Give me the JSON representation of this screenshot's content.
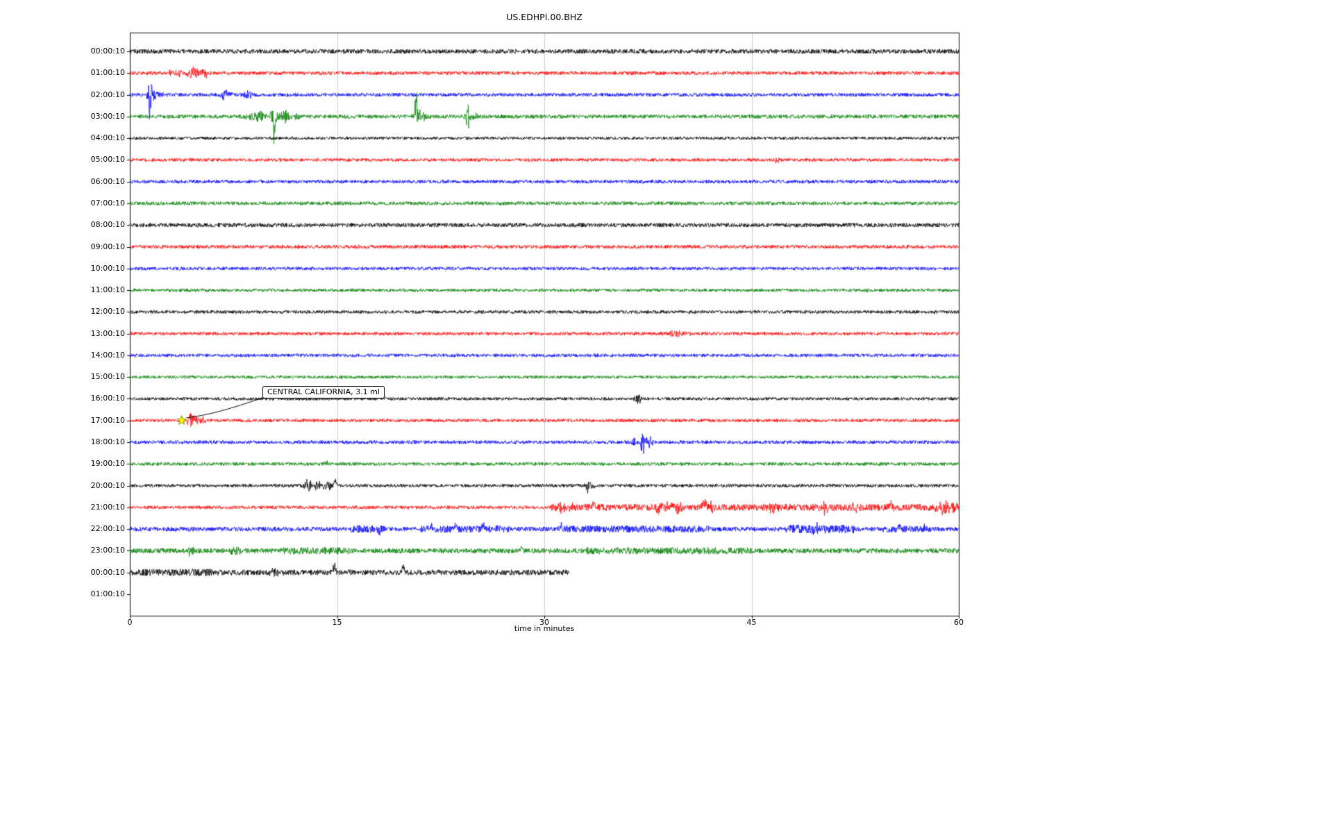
{
  "chart_data": {
    "type": "line",
    "subtype": "seismogram-dayplot",
    "title": "US.EDHPI.00.BHZ",
    "xlabel": "time in minutes",
    "xlim": [
      0,
      60
    ],
    "x_ticks": [
      0,
      15,
      30,
      45,
      60
    ],
    "grid_x": [
      15,
      30,
      45
    ],
    "legend": "none",
    "colors": {
      "black": "#000000",
      "red": "#ff0000",
      "blue": "#0000ff",
      "green": "#008000",
      "grid": "#cccccc",
      "frame": "#000000",
      "marker_fill": "#ffff00",
      "marker_edge": "#8b8b00"
    },
    "annotation": {
      "text": "CENTRAL CALIFORNIA, 3.1 ml",
      "row_label": "17:00:10",
      "row_index": 17,
      "x_minutes": 3.75,
      "marker": "star"
    },
    "rows": [
      {
        "label": "00:00:10",
        "color": "black",
        "amp": 3.2,
        "events": []
      },
      {
        "label": "01:00:10",
        "color": "red",
        "amp": 2.6,
        "events": [
          {
            "x": 2.9,
            "a": 4,
            "w": 0.2
          },
          {
            "x": 3.6,
            "a": 5,
            "w": 0.3
          },
          {
            "x": 4.6,
            "a": 9,
            "w": 0.45
          },
          {
            "x": 5.4,
            "a": 7,
            "w": 0.3
          }
        ]
      },
      {
        "label": "02:00:10",
        "color": "blue",
        "amp": 2.6,
        "events": [
          {
            "x": 1.45,
            "a": 38,
            "w": 0.15
          },
          {
            "x": 1.8,
            "a": 10,
            "w": 0.5
          },
          {
            "x": 6.9,
            "a": 8,
            "w": 0.45
          },
          {
            "x": 8.6,
            "a": 5,
            "w": 0.35
          }
        ]
      },
      {
        "label": "03:00:10",
        "color": "green",
        "amp": 2.8,
        "events": [
          {
            "x": 9.3,
            "a": 7,
            "w": 0.7
          },
          {
            "x": 10.45,
            "a": 12,
            "w": 0.3
          },
          {
            "x": 10.45,
            "a": 55,
            "w": 0.07,
            "dir": 1
          },
          {
            "x": 11.1,
            "a": 8,
            "w": 0.5
          },
          {
            "x": 12.1,
            "a": 5,
            "w": 0.3
          },
          {
            "x": 20.7,
            "a": 26,
            "w": 0.1
          },
          {
            "x": 20.72,
            "a": 55,
            "w": 0.07,
            "dir": -1
          },
          {
            "x": 21.0,
            "a": 8,
            "w": 0.5
          },
          {
            "x": 24.45,
            "a": 20,
            "w": 0.12
          },
          {
            "x": 24.7,
            "a": 6,
            "w": 0.5
          }
        ]
      },
      {
        "label": "04:00:10",
        "color": "black",
        "amp": 2.2,
        "events": []
      },
      {
        "label": "05:00:10",
        "color": "red",
        "amp": 2.4,
        "events": [
          {
            "x": 46.9,
            "a": 4,
            "w": 0.25
          }
        ]
      },
      {
        "label": "06:00:10",
        "color": "blue",
        "amp": 2.6,
        "events": []
      },
      {
        "label": "07:00:10",
        "color": "green",
        "amp": 2.6,
        "events": []
      },
      {
        "label": "08:00:10",
        "color": "black",
        "amp": 3.0,
        "events": []
      },
      {
        "label": "09:00:10",
        "color": "red",
        "amp": 2.6,
        "events": []
      },
      {
        "label": "10:00:10",
        "color": "blue",
        "amp": 2.4,
        "events": []
      },
      {
        "label": "11:00:10",
        "color": "green",
        "amp": 2.4,
        "events": []
      },
      {
        "label": "12:00:10",
        "color": "black",
        "amp": 2.4,
        "events": []
      },
      {
        "label": "13:00:10",
        "color": "red",
        "amp": 2.4,
        "events": [
          {
            "x": 39.5,
            "a": 4,
            "w": 0.8
          }
        ]
      },
      {
        "label": "14:00:10",
        "color": "blue",
        "amp": 2.4,
        "events": []
      },
      {
        "label": "15:00:10",
        "color": "green",
        "amp": 2.2,
        "events": []
      },
      {
        "label": "16:00:10",
        "color": "black",
        "amp": 2.2,
        "events": [
          {
            "x": 36.8,
            "a": 7,
            "w": 0.3
          }
        ]
      },
      {
        "label": "17:00:10",
        "color": "red",
        "amp": 2.4,
        "events": [
          {
            "x": 4.45,
            "a": 11,
            "w": 0.3
          },
          {
            "x": 5.1,
            "a": 6,
            "w": 0.35
          }
        ]
      },
      {
        "label": "18:00:10",
        "color": "blue",
        "amp": 2.6,
        "events": [
          {
            "x": 36.5,
            "a": 6,
            "w": 0.18
          },
          {
            "x": 37.1,
            "a": 19,
            "w": 0.16
          },
          {
            "x": 37.5,
            "a": 8,
            "w": 0.4
          }
        ]
      },
      {
        "label": "19:00:10",
        "color": "green",
        "amp": 2.4,
        "events": [
          {
            "x": 14.2,
            "a": 4,
            "w": 0.15
          }
        ]
      },
      {
        "label": "20:00:10",
        "color": "black",
        "amp": 2.4,
        "events": [
          {
            "x": 12.9,
            "a": 9,
            "w": 0.35
          },
          {
            "x": 13.6,
            "a": 7,
            "w": 0.3
          },
          {
            "x": 14.3,
            "a": 8,
            "w": 0.3
          },
          {
            "x": 14.9,
            "a": 11,
            "w": 0.12,
            "dir": -1
          },
          {
            "x": 33.1,
            "a": 13,
            "w": 0.1
          },
          {
            "x": 33.3,
            "a": 6,
            "w": 0.3
          }
        ]
      },
      {
        "label": "21:00:10",
        "color": "red",
        "amp": 2.4,
        "bursts": [
          {
            "x0": 30.5,
            "x1": 60,
            "m": 2.0
          }
        ],
        "events": [
          {
            "x": 31.5,
            "a": 6,
            "w": 0.6
          },
          {
            "x": 33.6,
            "a": 12,
            "w": 0.13,
            "dir": -1
          },
          {
            "x": 38.5,
            "a": 8,
            "w": 0.5
          },
          {
            "x": 39.6,
            "a": 9,
            "w": 0.4
          },
          {
            "x": 41.6,
            "a": 11,
            "w": 0.25,
            "dir": -1
          },
          {
            "x": 42.1,
            "a": 8,
            "w": 0.3
          },
          {
            "x": 46.5,
            "a": 8,
            "w": 0.4
          },
          {
            "x": 50.3,
            "a": 9,
            "w": 0.5
          },
          {
            "x": 52.6,
            "a": 7,
            "w": 0.3
          },
          {
            "x": 55.1,
            "a": 6,
            "w": 0.3
          },
          {
            "x": 58.9,
            "a": 8,
            "w": 0.5
          },
          {
            "x": 59.6,
            "a": 7,
            "w": 0.4
          }
        ]
      },
      {
        "label": "22:00:10",
        "color": "blue",
        "amp": 3.2,
        "bursts": [
          {
            "x0": 16,
            "x1": 18.5,
            "m": 1.8
          },
          {
            "x0": 21,
            "x1": 27.5,
            "m": 1.6
          },
          {
            "x0": 31,
            "x1": 42,
            "m": 1.6
          },
          {
            "x0": 47.5,
            "x1": 52.5,
            "m": 2.0
          },
          {
            "x0": 54.5,
            "x1": 58,
            "m": 1.5
          }
        ],
        "events": [
          {
            "x": 18.0,
            "a": 6,
            "w": 0.2
          },
          {
            "x": 21.8,
            "a": 8,
            "w": 0.13,
            "dir": -1
          },
          {
            "x": 23.6,
            "a": 9,
            "w": 0.13,
            "dir": -1
          },
          {
            "x": 25.6,
            "a": 8,
            "w": 0.13,
            "dir": -1
          },
          {
            "x": 26.5,
            "a": 6,
            "w": 0.2
          },
          {
            "x": 31.2,
            "a": 8,
            "w": 0.11,
            "dir": -1
          },
          {
            "x": 49.8,
            "a": 8,
            "w": 0.3
          },
          {
            "x": 55.7,
            "a": 7,
            "w": 0.13,
            "dir": -1
          },
          {
            "x": 57.5,
            "a": 6,
            "w": 0.15
          }
        ]
      },
      {
        "label": "23:00:10",
        "color": "green",
        "amp": 3.6,
        "bursts": [
          {
            "x0": 11,
            "x1": 16,
            "m": 1.4
          },
          {
            "x0": 33,
            "x1": 45,
            "m": 1.4
          }
        ],
        "events": [
          {
            "x": 4.4,
            "a": 10,
            "w": 0.18
          },
          {
            "x": 7.6,
            "a": 5,
            "w": 0.4
          },
          {
            "x": 22.5,
            "a": 5,
            "w": 0.3
          },
          {
            "x": 28.3,
            "a": 7,
            "w": 0.13,
            "dir": -1
          }
        ]
      },
      {
        "label": "00:00:10",
        "color": "black",
        "amp": 4.0,
        "coverage": 0.53,
        "bursts": [
          {
            "x0": 0,
            "x1": 6,
            "m": 1.3
          }
        ],
        "events": [
          {
            "x": 10.5,
            "a": 5,
            "w": 0.4
          },
          {
            "x": 14.8,
            "a": 16,
            "w": 0.1,
            "dir": -1
          },
          {
            "x": 19.8,
            "a": 19,
            "w": 0.1,
            "dir": -1
          }
        ]
      },
      {
        "label": "01:00:10",
        "color": "red",
        "amp": 0,
        "coverage": 0,
        "events": []
      }
    ]
  }
}
